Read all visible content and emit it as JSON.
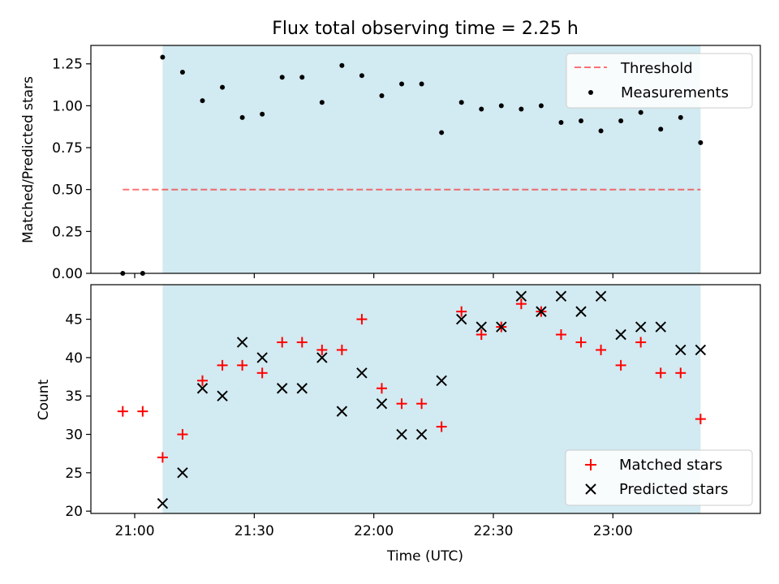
{
  "title": "Flux total observing time = 2.25 h",
  "colors": {
    "shade": "#add8e6",
    "threshold": "#ff0000",
    "measurement": "#000000",
    "matched": "#ff0000",
    "predicted": "#000000"
  },
  "chart_data": [
    {
      "type": "scatter",
      "ylabel": "Matched/Predicted stars",
      "ylim": [
        0,
        1.36
      ],
      "yticks": [
        0.0,
        0.25,
        0.5,
        0.75,
        1.0,
        1.25
      ],
      "ytick_labels": [
        "0.00",
        "0.25",
        "0.50",
        "0.75",
        "1.00",
        "1.25"
      ],
      "shaded_interval": [
        "21:07",
        "23:22"
      ],
      "legend": {
        "position": "top-right",
        "entries": [
          "Threshold",
          "Measurements"
        ]
      },
      "threshold": {
        "name": "Threshold",
        "y": 0.5,
        "x_range": [
          "20:57",
          "23:22"
        ],
        "style": "dashed"
      },
      "series": [
        {
          "name": "Measurements",
          "marker": "dot",
          "x": [
            "20:57",
            "21:02",
            "21:07",
            "21:12",
            "21:17",
            "21:22",
            "21:27",
            "21:32",
            "21:37",
            "21:42",
            "21:47",
            "21:52",
            "21:57",
            "22:02",
            "22:07",
            "22:12",
            "22:17",
            "22:22",
            "22:27",
            "22:32",
            "22:37",
            "22:42",
            "22:47",
            "22:52",
            "22:57",
            "23:02",
            "23:07",
            "23:12",
            "23:17",
            "23:22"
          ],
          "y": [
            0.0,
            0.0,
            1.29,
            1.2,
            1.03,
            1.11,
            0.93,
            0.95,
            1.17,
            1.17,
            1.02,
            1.24,
            1.18,
            1.06,
            1.13,
            1.13,
            0.84,
            1.02,
            0.98,
            1.0,
            0.98,
            1.0,
            0.9,
            0.91,
            0.85,
            0.91,
            0.96,
            0.86,
            0.93,
            0.78
          ]
        }
      ]
    },
    {
      "type": "scatter",
      "xlabel": "Time (UTC)",
      "ylabel": "Count",
      "xlim": [
        "20:49",
        "23:37"
      ],
      "xticks": [
        "21:00",
        "21:30",
        "22:00",
        "22:30",
        "23:00"
      ],
      "ylim": [
        19.7,
        49.5
      ],
      "yticks": [
        20,
        25,
        30,
        35,
        40,
        45
      ],
      "shaded_interval": [
        "21:07",
        "23:22"
      ],
      "legend": {
        "position": "bottom-right",
        "entries": [
          "Matched stars",
          "Predicted stars"
        ]
      },
      "series": [
        {
          "name": "Matched stars",
          "marker": "plus",
          "x": [
            "20:57",
            "21:02",
            "21:07",
            "21:12",
            "21:17",
            "21:22",
            "21:27",
            "21:32",
            "21:37",
            "21:42",
            "21:47",
            "21:52",
            "21:57",
            "22:02",
            "22:07",
            "22:12",
            "22:17",
            "22:22",
            "22:27",
            "22:32",
            "22:37",
            "22:42",
            "22:47",
            "22:52",
            "22:57",
            "23:02",
            "23:07",
            "23:12",
            "23:17",
            "23:22"
          ],
          "y": [
            33,
            33,
            27,
            30,
            37,
            39,
            39,
            38,
            42,
            42,
            41,
            41,
            45,
            36,
            34,
            34,
            31,
            46,
            43,
            44,
            47,
            46,
            43,
            42,
            41,
            39,
            42,
            38,
            38,
            32
          ]
        },
        {
          "name": "Predicted stars",
          "marker": "x",
          "x": [
            "21:07",
            "21:12",
            "21:17",
            "21:22",
            "21:27",
            "21:32",
            "21:37",
            "21:42",
            "21:47",
            "21:52",
            "21:57",
            "22:02",
            "22:07",
            "22:12",
            "22:17",
            "22:22",
            "22:27",
            "22:32",
            "22:37",
            "22:42",
            "22:47",
            "22:52",
            "22:57",
            "23:02",
            "23:07",
            "23:12",
            "23:17",
            "23:22"
          ],
          "y": [
            21,
            25,
            36,
            35,
            42,
            40,
            36,
            36,
            40,
            33,
            38,
            34,
            30,
            30,
            37,
            45,
            44,
            44,
            48,
            46,
            48,
            46,
            48,
            43,
            44,
            44,
            41,
            41
          ]
        }
      ]
    }
  ]
}
